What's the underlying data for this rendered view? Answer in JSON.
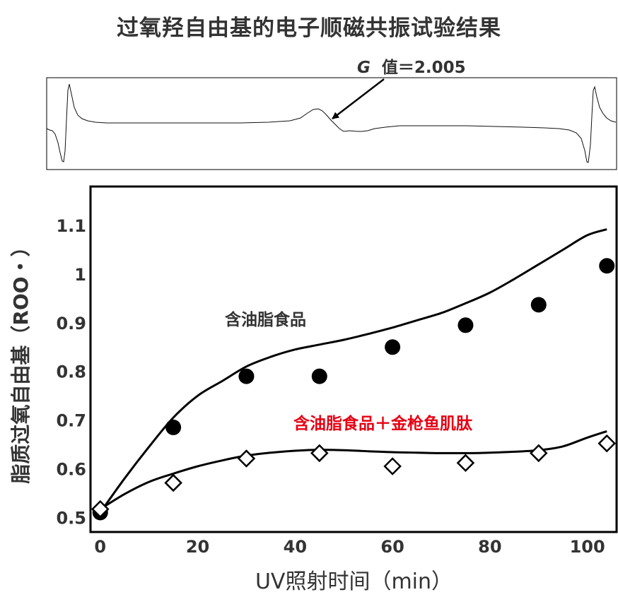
{
  "title": "过氧羟自由基的电子顺磁共振试验结果",
  "esr": {
    "g_symbol": "G",
    "g_text": "值＝2.005"
  },
  "chart_data": {
    "type": "scatter",
    "xlabel": "UV照射时间（min）",
    "ylabel": "脂质过氧自由基（ROO・）",
    "xlim": [
      -2,
      106
    ],
    "ylim": [
      0.47,
      1.18
    ],
    "xticks": [
      0,
      20,
      40,
      60,
      80,
      100
    ],
    "xtick_labels": [
      "0",
      "20",
      "40",
      "60",
      "80",
      "100"
    ],
    "yticks": [
      0.5,
      0.6,
      0.7,
      0.8,
      0.9,
      1.0,
      1.1
    ],
    "ytick_labels": [
      "0.5",
      "0.6",
      "0.7",
      "0.8",
      "0.9",
      "1",
      "1.1"
    ],
    "grid": false,
    "series": [
      {
        "name": "含油脂食品",
        "marker": "filled-circle",
        "color": "#000000",
        "x": [
          0,
          15,
          30,
          45,
          60,
          75,
          90,
          104
        ],
        "y": [
          0.51,
          0.685,
          0.79,
          0.79,
          0.85,
          0.895,
          0.937,
          1.017
        ],
        "trend": {
          "x": [
            0,
            5,
            10,
            15,
            20,
            25,
            30,
            35,
            40,
            45,
            50,
            55,
            60,
            65,
            70,
            75,
            80,
            85,
            90,
            95,
            100,
            104
          ],
          "y": [
            0.51,
            0.58,
            0.645,
            0.705,
            0.75,
            0.78,
            0.81,
            0.83,
            0.845,
            0.855,
            0.865,
            0.877,
            0.89,
            0.905,
            0.92,
            0.94,
            0.962,
            0.99,
            1.02,
            1.05,
            1.08,
            1.092
          ]
        }
      },
      {
        "name": "含油脂食品＋金枪鱼肌肽",
        "marker": "open-diamond",
        "color": "#000000",
        "label_color": "#e60012",
        "x": [
          0,
          15,
          30,
          45,
          60,
          75,
          90,
          104
        ],
        "y": [
          0.517,
          0.571,
          0.621,
          0.632,
          0.605,
          0.612,
          0.632,
          0.652
        ],
        "trend": {
          "x": [
            0,
            5,
            10,
            15,
            20,
            25,
            30,
            35,
            40,
            45,
            50,
            55,
            60,
            65,
            70,
            75,
            80,
            85,
            90,
            95,
            100,
            104
          ],
          "y": [
            0.517,
            0.548,
            0.573,
            0.59,
            0.605,
            0.617,
            0.627,
            0.633,
            0.637,
            0.639,
            0.638,
            0.636,
            0.634,
            0.633,
            0.632,
            0.632,
            0.633,
            0.635,
            0.638,
            0.646,
            0.664,
            0.677
          ]
        }
      }
    ]
  }
}
